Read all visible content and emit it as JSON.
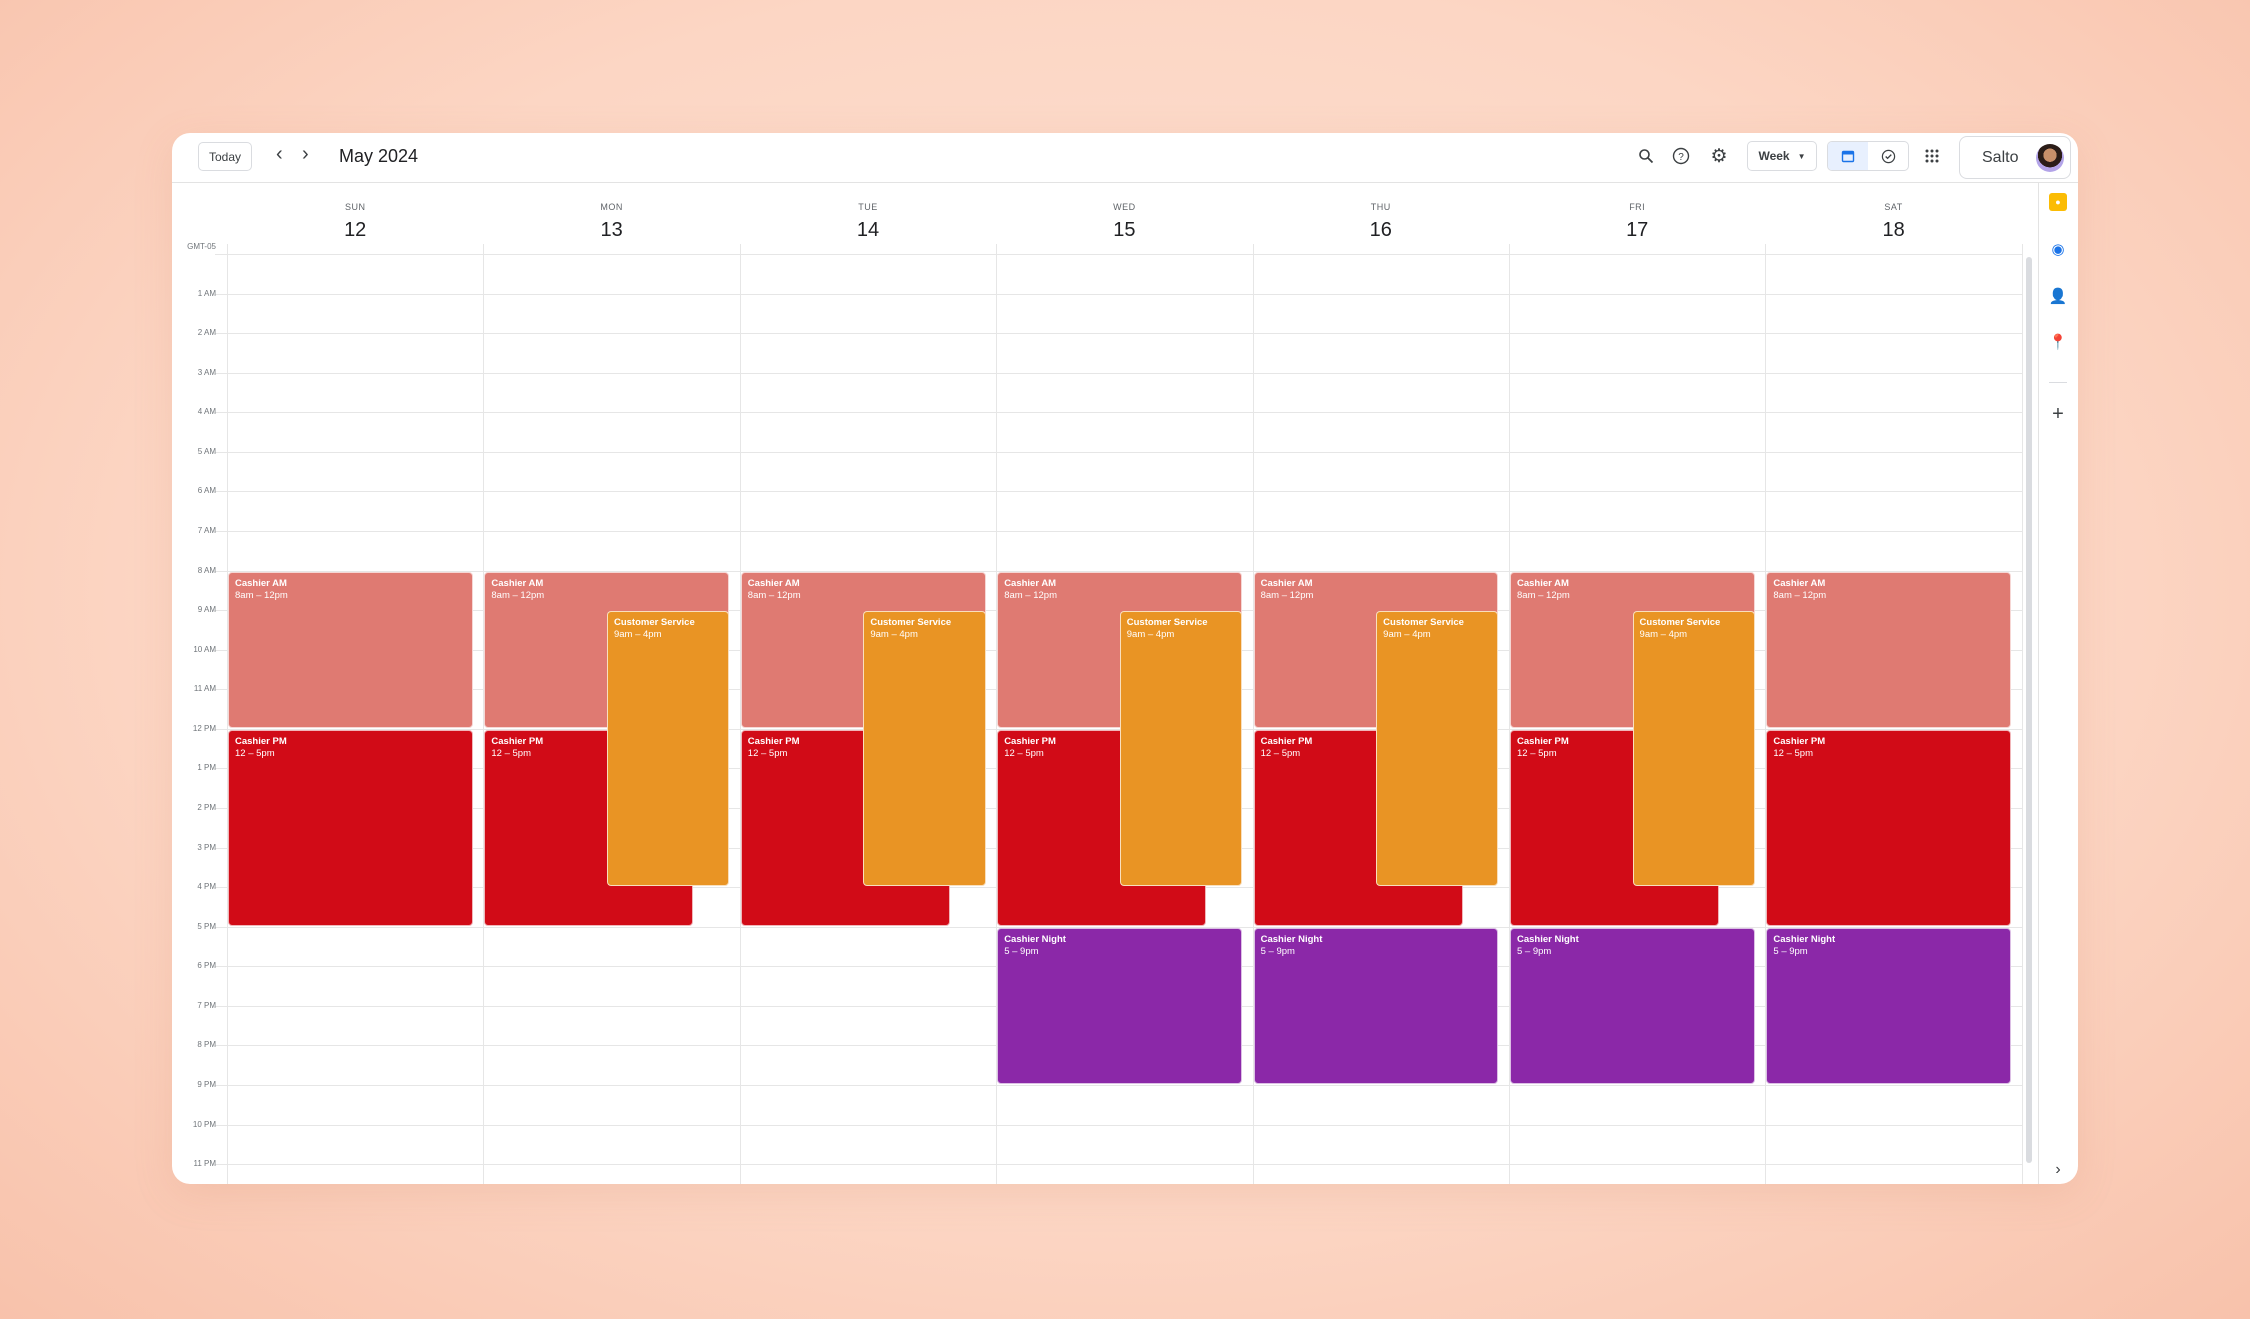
{
  "header": {
    "today_label": "Today",
    "prev_icon": "chevron-left",
    "next_icon": "chevron-right",
    "title": "May 2024",
    "view_label": "Week",
    "account_name": "Salto"
  },
  "timezone": "GMT-05",
  "days": [
    {
      "name": "SUN",
      "date": "12"
    },
    {
      "name": "MON",
      "date": "13"
    },
    {
      "name": "TUE",
      "date": "14"
    },
    {
      "name": "WED",
      "date": "15"
    },
    {
      "name": "THU",
      "date": "16"
    },
    {
      "name": "FRI",
      "date": "17"
    },
    {
      "name": "SAT",
      "date": "18"
    }
  ],
  "hours": [
    "1 AM",
    "2 AM",
    "3 AM",
    "4 AM",
    "5 AM",
    "6 AM",
    "7 AM",
    "8 AM",
    "9 AM",
    "10 AM",
    "11 AM",
    "12 PM",
    "1 PM",
    "2 PM",
    "3 PM",
    "4 PM",
    "5 PM",
    "6 PM",
    "7 PM",
    "8 PM",
    "9 PM",
    "10 PM",
    "11 PM"
  ],
  "colors": {
    "cashier_am": "#df7a72",
    "cashier_pm": "#d10b17",
    "customer_service": "#e99424",
    "cashier_night": "#8b28a8"
  },
  "events": [
    {
      "day": 0,
      "title": "Cashier AM",
      "time": "8am – 12pm",
      "start": 8,
      "end": 12,
      "kind": "cashier_am"
    },
    {
      "day": 0,
      "title": "Cashier PM",
      "time": "12 – 5pm",
      "start": 12,
      "end": 17,
      "kind": "cashier_pm"
    },
    {
      "day": 1,
      "title": "Cashier AM",
      "time": "8am – 12pm",
      "start": 8,
      "end": 12,
      "kind": "cashier_am"
    },
    {
      "day": 1,
      "title": "Cashier PM",
      "time": "12 – 5pm",
      "start": 12,
      "end": 17,
      "kind": "cashier_pm"
    },
    {
      "day": 1,
      "title": "Customer Service",
      "time": "9am – 4pm",
      "start": 9,
      "end": 16,
      "kind": "customer_service"
    },
    {
      "day": 2,
      "title": "Cashier AM",
      "time": "8am – 12pm",
      "start": 8,
      "end": 12,
      "kind": "cashier_am"
    },
    {
      "day": 2,
      "title": "Cashier PM",
      "time": "12 – 5pm",
      "start": 12,
      "end": 17,
      "kind": "cashier_pm"
    },
    {
      "day": 2,
      "title": "Customer Service",
      "time": "9am – 4pm",
      "start": 9,
      "end": 16,
      "kind": "customer_service"
    },
    {
      "day": 3,
      "title": "Cashier AM",
      "time": "8am – 12pm",
      "start": 8,
      "end": 12,
      "kind": "cashier_am"
    },
    {
      "day": 3,
      "title": "Cashier PM",
      "time": "12 – 5pm",
      "start": 12,
      "end": 17,
      "kind": "cashier_pm"
    },
    {
      "day": 3,
      "title": "Customer Service",
      "time": "9am – 4pm",
      "start": 9,
      "end": 16,
      "kind": "customer_service"
    },
    {
      "day": 3,
      "title": "Cashier Night",
      "time": "5 – 9pm",
      "start": 17,
      "end": 21,
      "kind": "cashier_night"
    },
    {
      "day": 4,
      "title": "Cashier AM",
      "time": "8am – 12pm",
      "start": 8,
      "end": 12,
      "kind": "cashier_am"
    },
    {
      "day": 4,
      "title": "Cashier PM",
      "time": "12 – 5pm",
      "start": 12,
      "end": 17,
      "kind": "cashier_pm"
    },
    {
      "day": 4,
      "title": "Customer Service",
      "time": "9am – 4pm",
      "start": 9,
      "end": 16,
      "kind": "customer_service"
    },
    {
      "day": 4,
      "title": "Cashier Night",
      "time": "5 – 9pm",
      "start": 17,
      "end": 21,
      "kind": "cashier_night"
    },
    {
      "day": 5,
      "title": "Cashier AM",
      "time": "8am – 12pm",
      "start": 8,
      "end": 12,
      "kind": "cashier_am"
    },
    {
      "day": 5,
      "title": "Cashier PM",
      "time": "12 – 5pm",
      "start": 12,
      "end": 17,
      "kind": "cashier_pm"
    },
    {
      "day": 5,
      "title": "Customer Service",
      "time": "9am – 4pm",
      "start": 9,
      "end": 16,
      "kind": "customer_service"
    },
    {
      "day": 5,
      "title": "Cashier Night",
      "time": "5 – 9pm",
      "start": 17,
      "end": 21,
      "kind": "cashier_night"
    },
    {
      "day": 6,
      "title": "Cashier AM",
      "time": "8am – 12pm",
      "start": 8,
      "end": 12,
      "kind": "cashier_am"
    },
    {
      "day": 6,
      "title": "Cashier PM",
      "time": "12 – 5pm",
      "start": 12,
      "end": 17,
      "kind": "cashier_pm"
    },
    {
      "day": 6,
      "title": "Cashier Night",
      "time": "5 – 9pm",
      "start": 17,
      "end": 21,
      "kind": "cashier_night"
    }
  ]
}
